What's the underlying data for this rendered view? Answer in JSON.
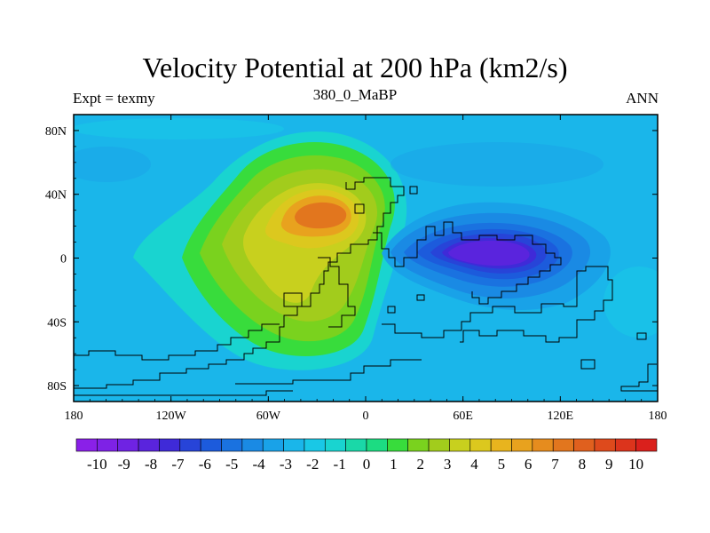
{
  "chart_data": {
    "type": "heatmap",
    "title": "Velocity Potential at 200 hPa (km2/s)",
    "subtitle_left": "Expt = texmy",
    "subtitle_center": "380_0_MaBP",
    "subtitle_right": "ANN",
    "x_range": [
      -180,
      180
    ],
    "y_range": [
      -90,
      90
    ],
    "x_ticks": [
      {
        "value": -180,
        "label": "180"
      },
      {
        "value": -120,
        "label": "120W"
      },
      {
        "value": -60,
        "label": "60W"
      },
      {
        "value": 0,
        "label": "0"
      },
      {
        "value": 60,
        "label": "60E"
      },
      {
        "value": 120,
        "label": "120E"
      },
      {
        "value": 180,
        "label": "180"
      }
    ],
    "y_ticks": [
      {
        "value": 80,
        "label": "80N"
      },
      {
        "value": 40,
        "label": "40N"
      },
      {
        "value": 0,
        "label": "0"
      },
      {
        "value": -40,
        "label": "40S"
      },
      {
        "value": -80,
        "label": "80S"
      }
    ],
    "colorbar": {
      "levels": [
        "-10",
        "-9",
        "-8",
        "-7",
        "-6",
        "-5",
        "-4",
        "-3",
        "-2",
        "-1",
        "0",
        "1",
        "2",
        "3",
        "4",
        "5",
        "6",
        "7",
        "8",
        "9",
        "10"
      ],
      "colors": [
        "#8a20e8",
        "#7e22e6",
        "#6f23e3",
        "#5a24dd",
        "#3f2ad8",
        "#2744d8",
        "#1c5bdc",
        "#1a72e0",
        "#1a8ae4",
        "#19a2e8",
        "#1ab6ea",
        "#19c8e6",
        "#19d4d0",
        "#1ad8a8",
        "#1cdc82",
        "#38dc3c",
        "#7ad21e",
        "#a2cc1c",
        "#c8d01e",
        "#dcc81e",
        "#e8b41e",
        "#e8a21e",
        "#e68c1e",
        "#e2761e",
        "#e0601e",
        "#de4a1c",
        "#dc341c",
        "#da201c"
      ]
    },
    "field_extrema": [
      {
        "type": "max",
        "lon": -23,
        "lat": 24,
        "value": 8.5
      },
      {
        "type": "min",
        "lon": 83,
        "lat": 2,
        "value": -7.5
      }
    ]
  }
}
